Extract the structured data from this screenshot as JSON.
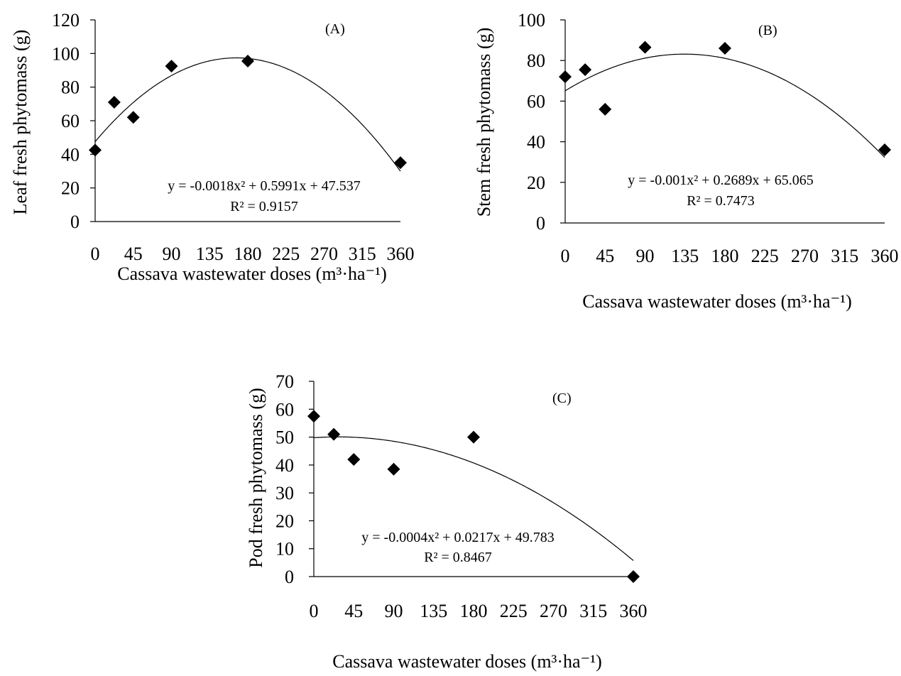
{
  "chart_data": [
    {
      "type": "scatter",
      "panel_label": "(A)",
      "xlabel": "Cassava wastewater doses (m³·ha⁻¹)",
      "ylabel": "Leaf fresh phytomass (g)",
      "xlim": [
        0,
        360
      ],
      "ylim": [
        0,
        120
      ],
      "x_ticks": [
        0,
        45,
        90,
        135,
        180,
        225,
        270,
        315,
        360
      ],
      "y_ticks": [
        0,
        20,
        40,
        60,
        80,
        100,
        120
      ],
      "points": {
        "x": [
          0,
          22.5,
          45,
          90,
          180,
          360
        ],
        "y": [
          42.5,
          71,
          62,
          92.5,
          95.5,
          35
        ]
      },
      "fit": {
        "a": -0.0018,
        "b": 0.5991,
        "c": 47.537
      },
      "equation": "y = -0.0018x² + 0.5991x + 47.537",
      "r_squared": "R² = 0.9157"
    },
    {
      "type": "scatter",
      "panel_label": "(B)",
      "xlabel": "Cassava wastewater doses (m³·ha⁻¹)",
      "ylabel": "Stem fresh phytomass (g)",
      "xlim": [
        0,
        360
      ],
      "ylim": [
        0,
        100
      ],
      "x_ticks": [
        0,
        45,
        90,
        135,
        180,
        225,
        270,
        315,
        360
      ],
      "y_ticks": [
        0,
        20,
        40,
        60,
        80,
        100
      ],
      "points": {
        "x": [
          0,
          22.5,
          45,
          90,
          180,
          360
        ],
        "y": [
          72,
          75.5,
          56,
          86.5,
          86,
          36
        ]
      },
      "fit": {
        "a": -0.001,
        "b": 0.2689,
        "c": 65.065
      },
      "equation": "y = -0.001x² + 0.2689x + 65.065",
      "r_squared": "R² = 0.7473"
    },
    {
      "type": "scatter",
      "panel_label": "(C)",
      "xlabel": "Cassava wastewater doses (m³·ha⁻¹)",
      "ylabel": "Pod fresh phytomass (g)",
      "xlim": [
        0,
        360
      ],
      "ylim": [
        0,
        70
      ],
      "x_ticks": [
        0,
        45,
        90,
        135,
        180,
        225,
        270,
        315,
        360
      ],
      "y_ticks": [
        0,
        10,
        20,
        30,
        40,
        50,
        60,
        70
      ],
      "points": {
        "x": [
          0,
          22.5,
          45,
          90,
          180,
          360
        ],
        "y": [
          57.5,
          51,
          42,
          38.5,
          50,
          0
        ]
      },
      "fit": {
        "a": -0.0004,
        "b": 0.0217,
        "c": 49.783
      },
      "equation": "y = -0.0004x² + 0.0217x + 49.783",
      "r_squared": "R² = 0.8467"
    }
  ]
}
